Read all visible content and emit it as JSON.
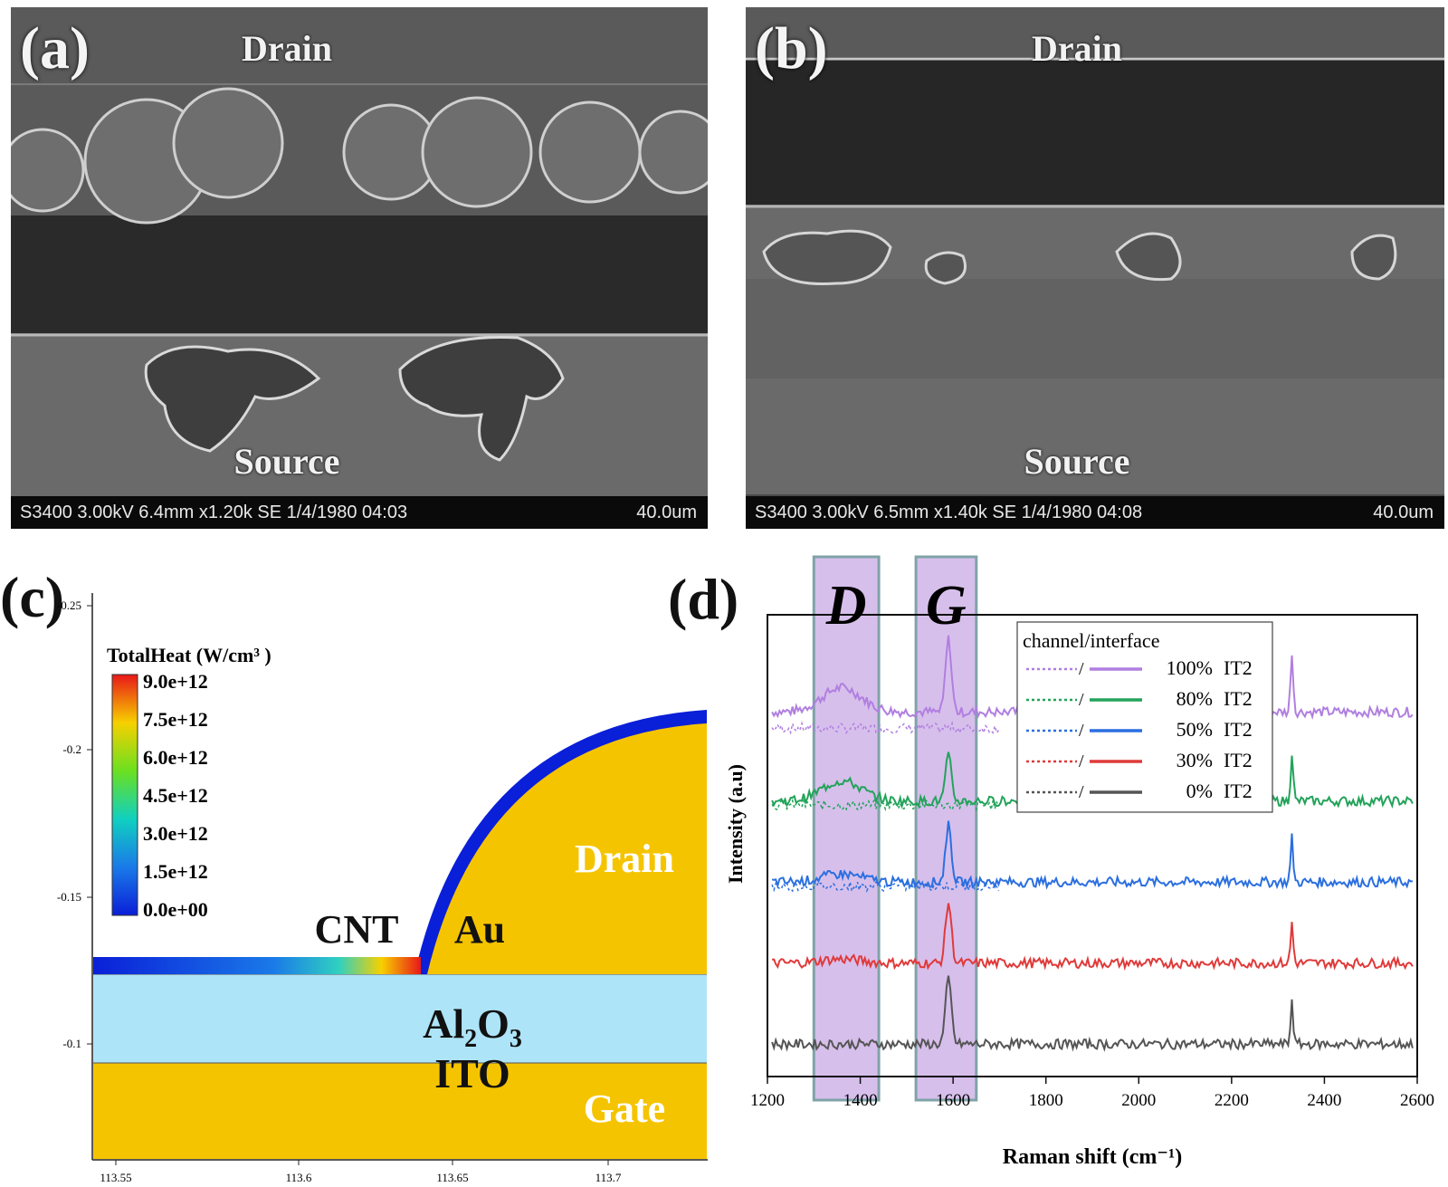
{
  "panel_a": {
    "label": "(a)",
    "drain": "Drain",
    "source": "Source",
    "info": "S3400 3.00kV 6.4mm x1.20k SE  1/4/1980 04:03",
    "scale": "40.0um"
  },
  "panel_b": {
    "label": "(b)",
    "drain": "Drain",
    "source": "Source",
    "info": "S3400 3.00kV 6.5mm x1.40k SE  1/4/1980 04:08",
    "scale": "40.0um"
  },
  "panel_c": {
    "label": "(c)",
    "legend_title": "TotalHeat (W/cm³ )",
    "colorbar_ticks": [
      "9.0e+12",
      "7.5e+12",
      "6.0e+12",
      "4.5e+12",
      "3.0e+12",
      "1.5e+12",
      "0.0e+00"
    ],
    "y_ticks": [
      "-0.25",
      "-0.2",
      "-0.15",
      "-0.1"
    ],
    "x_ticks": [
      "113.55",
      "113.6",
      "113.65",
      "113.7"
    ],
    "labels": {
      "drain": "Drain",
      "cnt": "CNT",
      "au": "Au",
      "al": "Al",
      "sub2": "2",
      "o": "O",
      "sub3": "3",
      "ito": "ITO",
      "gate": "Gate"
    },
    "colors": {
      "metal": "#f5c400",
      "oxide": "#aee4f7",
      "cnt_low": "#0a1fd8",
      "cnt_hot": "#e81818"
    }
  },
  "chart_data": {
    "type": "line",
    "label": "(d)",
    "xlabel": "Raman shift (cm⁻¹)",
    "ylabel": "Intensity (a.u)",
    "xlim": [
      1200,
      2600
    ],
    "x_ticks": [
      1200,
      1400,
      1600,
      1800,
      2000,
      2200,
      2400,
      2600
    ],
    "bands": [
      {
        "name": "D",
        "range": [
          1300,
          1440
        ]
      },
      {
        "name": "G",
        "range": [
          1520,
          1650
        ]
      }
    ],
    "legend": {
      "title": "channel/interface",
      "separator": "/",
      "position": "top-right"
    },
    "peak_position": 1590,
    "sharp_peak_position": 2330,
    "series": [
      {
        "name": "100% IT2",
        "pct": "100%",
        "tag": "IT2",
        "color": "#b07fe0",
        "baseline": 4.2,
        "g_peak": 0.9,
        "d_peak": 0.3,
        "sharp": 0.75,
        "dotted_offset": -0.2
      },
      {
        "name": "80% IT2",
        "pct": "80%",
        "tag": "IT2",
        "color": "#23a35a",
        "baseline": 3.1,
        "g_peak": 0.55,
        "d_peak": 0.25,
        "sharp": 0.6,
        "dotted_offset": -0.05
      },
      {
        "name": "50% IT2",
        "pct": "50%",
        "tag": "IT2",
        "color": "#2b6fe0",
        "baseline": 2.1,
        "g_peak": 0.7,
        "d_peak": 0.1,
        "sharp": 0.55,
        "dotted_offset": -0.05
      },
      {
        "name": "30% IT2",
        "pct": "30%",
        "tag": "IT2",
        "color": "#e03a3a",
        "baseline": 1.1,
        "g_peak": 0.75,
        "d_peak": 0.05,
        "sharp": 0.5,
        "dotted_offset": 0.0
      },
      {
        "name": "0% IT2",
        "pct": "0%",
        "tag": "IT2",
        "color": "#555555",
        "baseline": 0.1,
        "g_peak": 0.8,
        "d_peak": 0.0,
        "sharp": 0.55,
        "dotted_offset": 0.0
      }
    ]
  }
}
